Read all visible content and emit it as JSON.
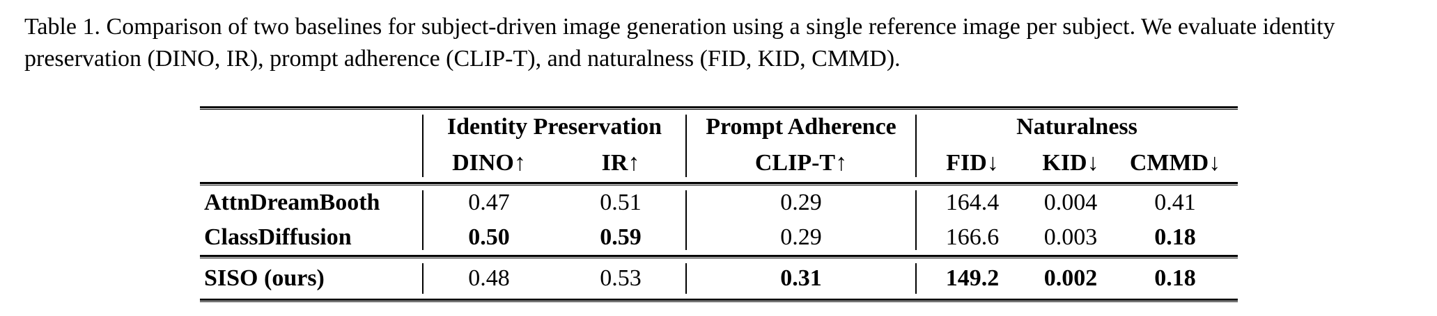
{
  "caption": {
    "lines": [
      "Table 1. Comparison of two baselines for subject-driven image generation using a single reference image per subject. We evaluate identity",
      "preservation (DINO, IR), prompt adherence (CLIP-T), and naturalness (FID, KID, CMMD)."
    ]
  },
  "table": {
    "group_headers": [
      {
        "label": "Identity Preservation"
      },
      {
        "label": "Prompt Adherence"
      },
      {
        "label": "Naturalness"
      }
    ],
    "column_headers": [
      "DINO↑",
      "IR↑",
      "CLIP-T↑",
      "FID↓",
      "KID↓",
      "CMMD↓"
    ],
    "rows": [
      {
        "name": "AttnDreamBooth",
        "values": [
          "0.47",
          "0.51",
          "0.29",
          "164.4",
          "0.004",
          "0.41"
        ],
        "bold": [
          false,
          false,
          false,
          false,
          false,
          false
        ]
      },
      {
        "name": "ClassDiffusion",
        "values": [
          "0.50",
          "0.59",
          "0.29",
          "166.6",
          "0.003",
          "0.18"
        ],
        "bold": [
          true,
          true,
          false,
          false,
          false,
          true
        ]
      },
      {
        "name": "SISO (ours)",
        "values": [
          "0.48",
          "0.53",
          "0.31",
          "149.2",
          "0.002",
          "0.18"
        ],
        "bold": [
          false,
          false,
          true,
          true,
          true,
          true
        ]
      }
    ],
    "colors": {
      "text": "#000000",
      "background": "#ffffff",
      "rule": "#000000"
    }
  }
}
